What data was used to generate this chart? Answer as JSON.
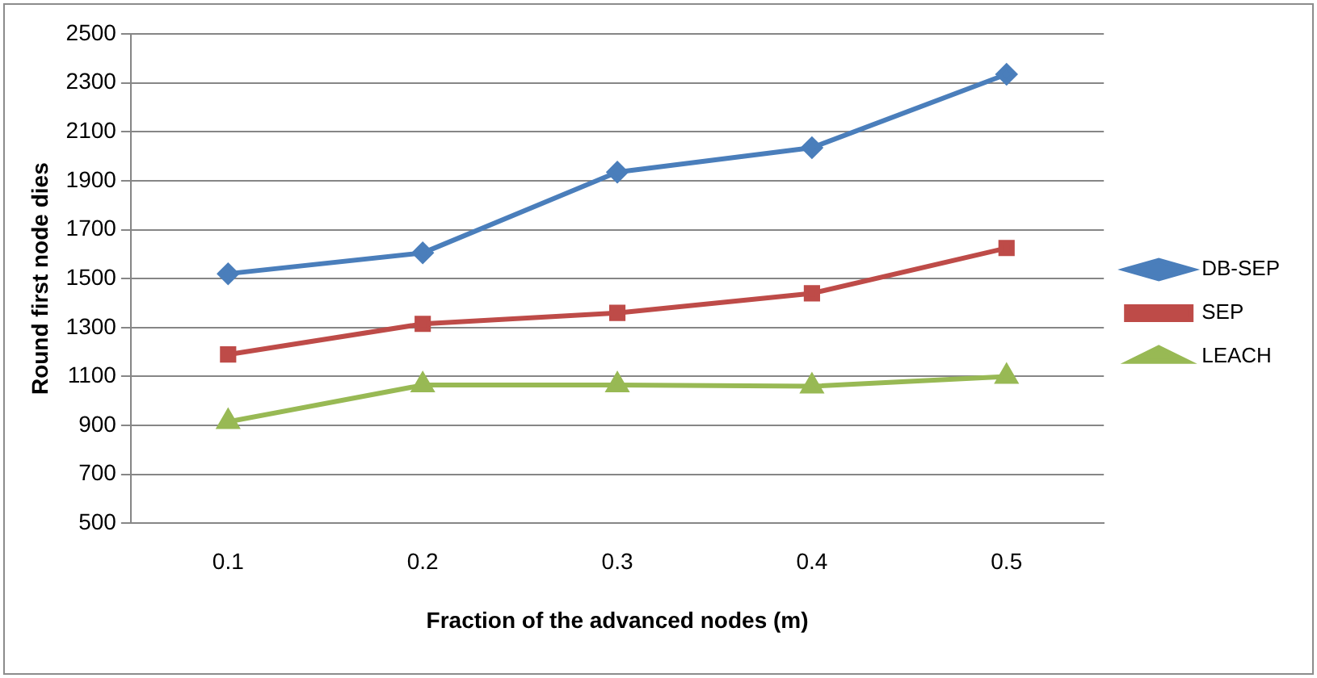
{
  "chart_data": {
    "type": "line",
    "xlabel": "Fraction of the advanced nodes (m)",
    "ylabel": "Round first node dies",
    "categories": [
      "0.1",
      "0.2",
      "0.3",
      "0.4",
      "0.5"
    ],
    "series": [
      {
        "name": "DB-SEP",
        "color": "#4a7ebb",
        "marker": "diamond",
        "values": [
          1520,
          1605,
          1935,
          2035,
          2335
        ]
      },
      {
        "name": "SEP",
        "color": "#be4b48",
        "marker": "square",
        "values": [
          1190,
          1315,
          1360,
          1440,
          1625
        ]
      },
      {
        "name": "LEACH",
        "color": "#98b954",
        "marker": "triangle",
        "values": [
          915,
          1065,
          1065,
          1060,
          1100
        ]
      }
    ],
    "ylim": [
      500,
      2500
    ],
    "yticks": [
      500,
      700,
      900,
      1100,
      1300,
      1500,
      1700,
      1900,
      2100,
      2300,
      2500
    ],
    "grid": "y",
    "legend": "right"
  }
}
